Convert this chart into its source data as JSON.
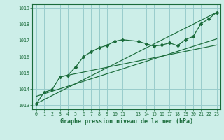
{
  "title": "Graphe pression niveau de la mer (hPa)",
  "bg_color": "#cceee8",
  "grid_color": "#99cccc",
  "line_color": "#1a6b3a",
  "border_color": "#1a6b3a",
  "xlim": [
    -0.5,
    23.5
  ],
  "ylim": [
    1012.75,
    1019.25
  ],
  "yticks": [
    1013,
    1014,
    1015,
    1016,
    1017,
    1018,
    1019
  ],
  "xticks": [
    0,
    1,
    2,
    3,
    4,
    5,
    6,
    7,
    8,
    9,
    10,
    11,
    13,
    14,
    15,
    16,
    17,
    18,
    19,
    20,
    21,
    22,
    23
  ],
  "x_labels": [
    "0",
    "1",
    "2",
    "3",
    "4",
    "5",
    "6",
    "7",
    "8",
    "9",
    "10",
    "11",
    "13",
    "14",
    "15",
    "16",
    "17",
    "18",
    "19",
    "20",
    "21",
    "22",
    "23"
  ],
  "main_data": {
    "x": [
      0,
      1,
      2,
      3,
      4,
      5,
      6,
      7,
      8,
      9,
      10,
      11,
      13,
      14,
      15,
      16,
      17,
      18,
      19,
      20,
      21,
      22,
      23
    ],
    "y": [
      1013.1,
      1013.8,
      1013.95,
      1014.75,
      1014.85,
      1015.35,
      1016.0,
      1016.3,
      1016.55,
      1016.7,
      1016.95,
      1017.05,
      1016.95,
      1016.8,
      1016.65,
      1016.72,
      1016.85,
      1016.68,
      1017.05,
      1017.25,
      1018.05,
      1018.35,
      1018.75
    ]
  },
  "trend_line1": {
    "x": [
      0,
      23
    ],
    "y": [
      1013.1,
      1018.75
    ]
  },
  "trend_line2": {
    "x": [
      0,
      23
    ],
    "y": [
      1013.55,
      1017.1
    ]
  },
  "trend_line3": {
    "x": [
      3,
      23
    ],
    "y": [
      1014.75,
      1016.72
    ]
  }
}
